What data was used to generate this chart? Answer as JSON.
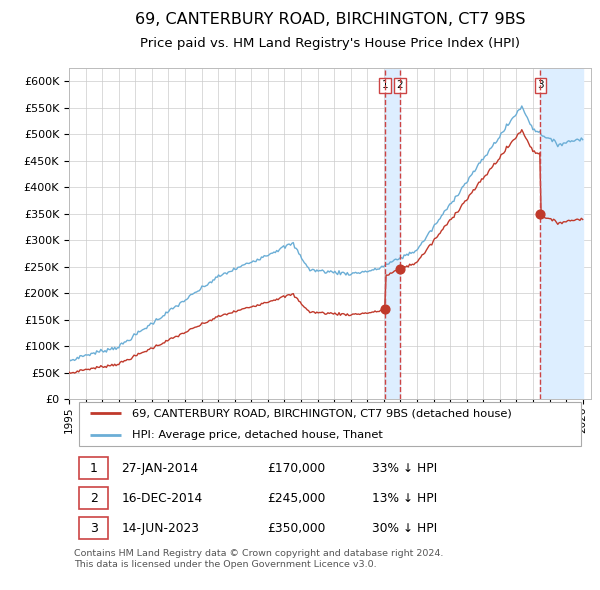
{
  "title": "69, CANTERBURY ROAD, BIRCHINGTON, CT7 9BS",
  "subtitle": "Price paid vs. HM Land Registry's House Price Index (HPI)",
  "ylabel_ticks": [
    "£0",
    "£50K",
    "£100K",
    "£150K",
    "£200K",
    "£250K",
    "£300K",
    "£350K",
    "£400K",
    "£450K",
    "£500K",
    "£550K",
    "£600K"
  ],
  "ytick_values": [
    0,
    50000,
    100000,
    150000,
    200000,
    250000,
    300000,
    350000,
    400000,
    450000,
    500000,
    550000,
    600000
  ],
  "hpi_color": "#6baed6",
  "price_color": "#c0392b",
  "vline_color": "#e88080",
  "shade_color": "#ddeeff",
  "legend_label_price": "69, CANTERBURY ROAD, BIRCHINGTON, CT7 9BS (detached house)",
  "legend_label_hpi": "HPI: Average price, detached house, Thanet",
  "transactions": [
    {
      "num": 1,
      "date": "27-JAN-2014",
      "price": 170000,
      "pct": "33% ↓ HPI",
      "year": 2014.07
    },
    {
      "num": 2,
      "date": "16-DEC-2014",
      "price": 245000,
      "pct": "13% ↓ HPI",
      "year": 2014.96
    },
    {
      "num": 3,
      "date": "14-JUN-2023",
      "price": 350000,
      "pct": "30% ↓ HPI",
      "year": 2023.45
    }
  ],
  "footer": "Contains HM Land Registry data © Crown copyright and database right 2024.\nThis data is licensed under the Open Government Licence v3.0.",
  "xstart_year": 1995,
  "xend_year": 2026
}
